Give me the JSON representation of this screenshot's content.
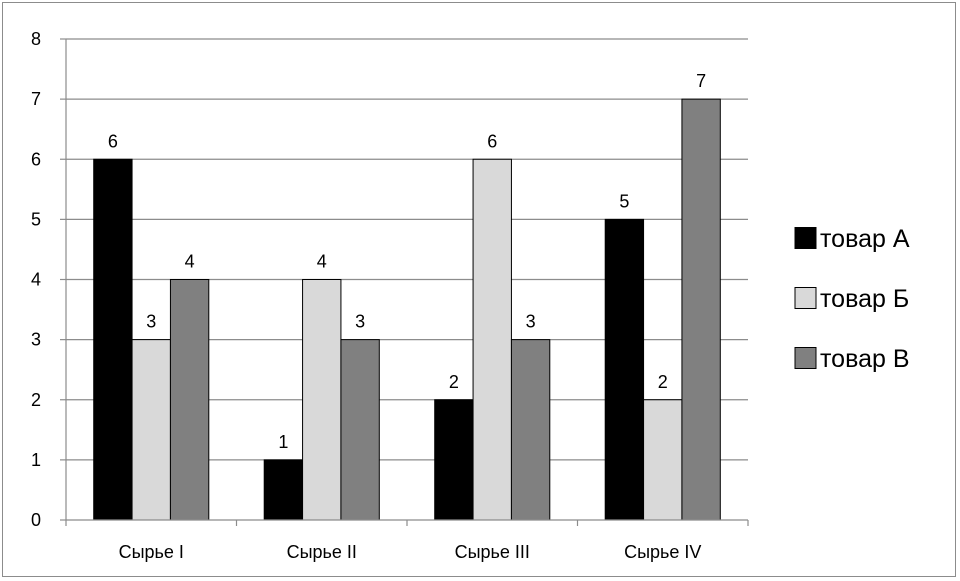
{
  "chart_data": {
    "type": "bar",
    "title": "",
    "xlabel": "",
    "ylabel": "",
    "categories": [
      "Сырье I",
      "Сырье II",
      "Сырье III",
      "Сырье IV"
    ],
    "series": [
      {
        "name": "товар А",
        "values": [
          6,
          1,
          2,
          5
        ],
        "color": "#000000"
      },
      {
        "name": "товар Б",
        "values": [
          3,
          4,
          6,
          2
        ],
        "color": "#d9d9d9"
      },
      {
        "name": "товар В",
        "values": [
          4,
          3,
          3,
          7
        ],
        "color": "#808080"
      }
    ],
    "ylim": [
      0,
      8
    ],
    "yticks": [
      0,
      1,
      2,
      3,
      4,
      5,
      6,
      7,
      8
    ],
    "grid": true,
    "legend_position": "right",
    "data_labels": true
  }
}
